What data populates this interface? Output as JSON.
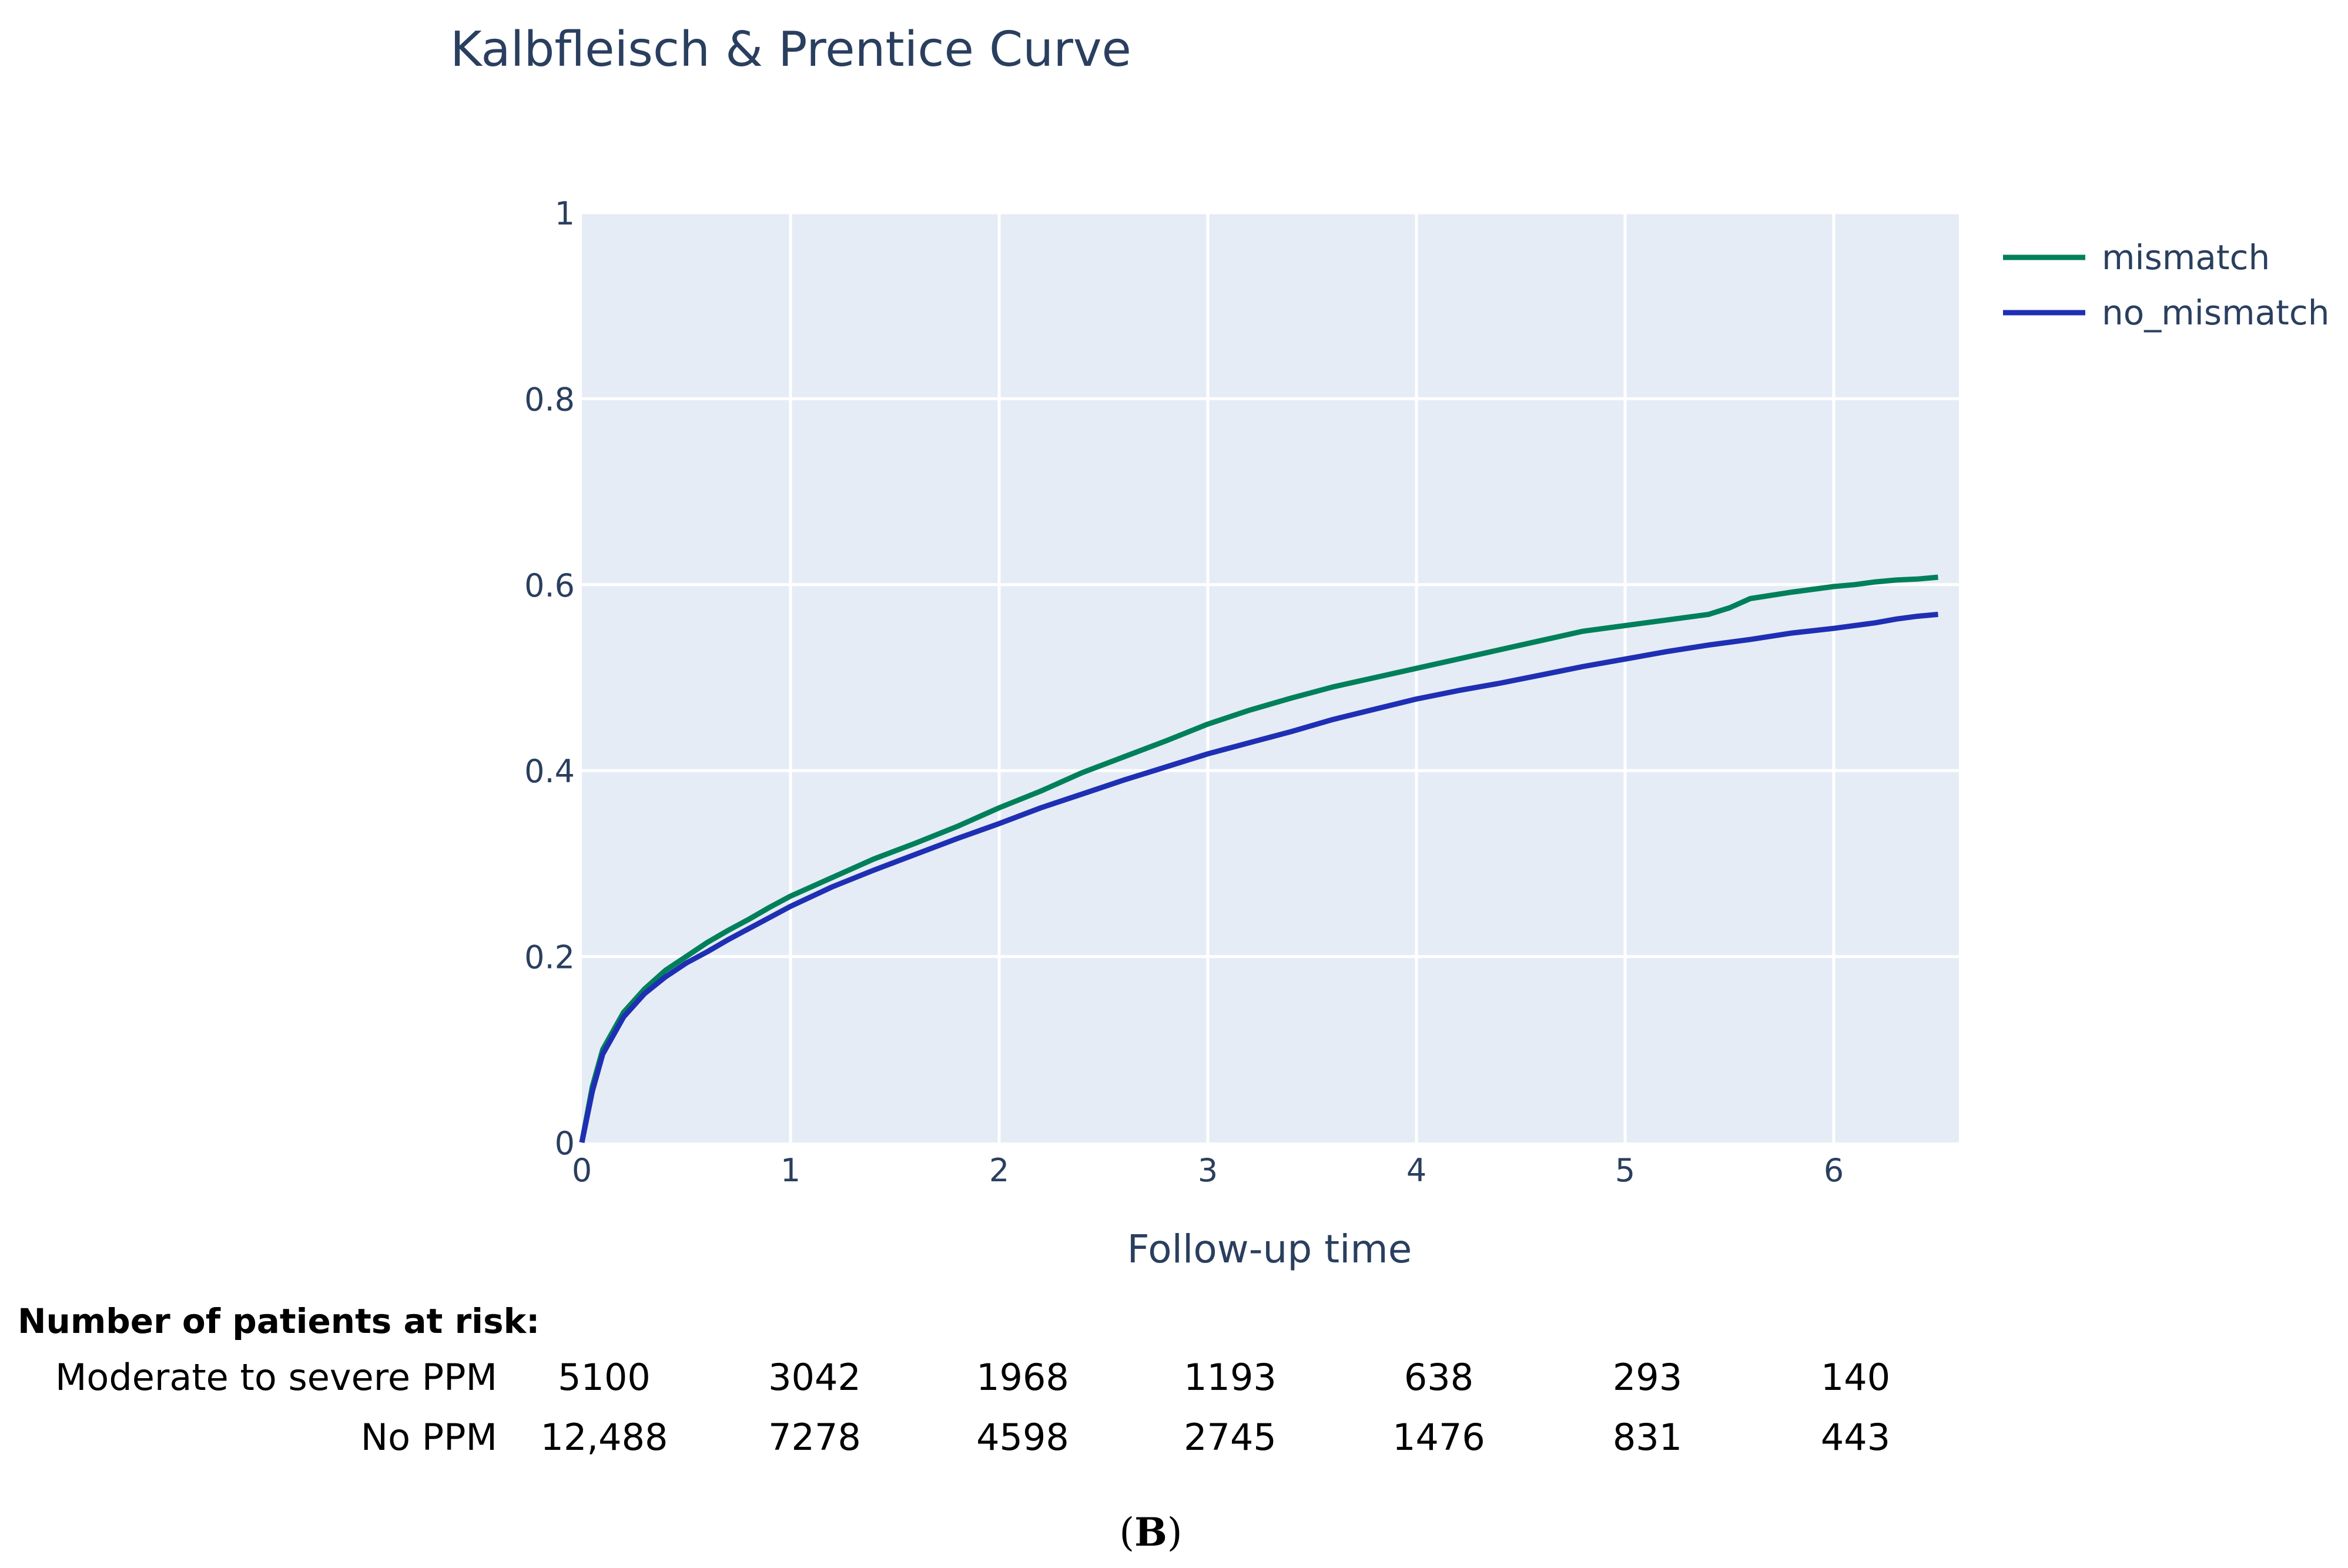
{
  "chart_data": {
    "type": "line",
    "title": "Kalbfleisch & Prentice Curve",
    "xlabel": "Follow-up time",
    "ylabel": "",
    "xlim": [
      0,
      6.6
    ],
    "ylim": [
      0,
      1
    ],
    "x_ticks": [
      "0",
      "1",
      "2",
      "3",
      "4",
      "5",
      "6"
    ],
    "y_ticks": [
      "0",
      "0.2",
      "0.4",
      "0.6",
      "0.8",
      "1"
    ],
    "grid": true,
    "legend_position": "top-right",
    "series": [
      {
        "name": "mismatch",
        "color": "#00805a",
        "x": [
          0,
          0.05,
          0.1,
          0.2,
          0.3,
          0.4,
          0.5,
          0.6,
          0.7,
          0.8,
          0.9,
          1.0,
          1.2,
          1.4,
          1.6,
          1.8,
          2.0,
          2.2,
          2.4,
          2.6,
          2.8,
          3.0,
          3.2,
          3.4,
          3.6,
          3.8,
          4.0,
          4.2,
          4.4,
          4.6,
          4.8,
          5.0,
          5.2,
          5.4,
          5.5,
          5.6,
          5.8,
          6.0,
          6.1,
          6.2,
          6.3,
          6.4,
          6.5
        ],
        "values": [
          0,
          0.06,
          0.1,
          0.14,
          0.165,
          0.185,
          0.2,
          0.215,
          0.228,
          0.24,
          0.253,
          0.265,
          0.285,
          0.305,
          0.322,
          0.34,
          0.36,
          0.378,
          0.398,
          0.415,
          0.432,
          0.45,
          0.465,
          0.478,
          0.49,
          0.5,
          0.51,
          0.52,
          0.53,
          0.54,
          0.55,
          0.556,
          0.562,
          0.568,
          0.575,
          0.585,
          0.592,
          0.598,
          0.6,
          0.603,
          0.605,
          0.606,
          0.608
        ]
      },
      {
        "name": "no_mismatch",
        "color": "#1f2fb4",
        "x": [
          0,
          0.05,
          0.1,
          0.2,
          0.3,
          0.4,
          0.5,
          0.6,
          0.7,
          0.8,
          0.9,
          1.0,
          1.2,
          1.4,
          1.6,
          1.8,
          2.0,
          2.2,
          2.4,
          2.6,
          2.8,
          3.0,
          3.2,
          3.4,
          3.6,
          3.8,
          4.0,
          4.2,
          4.4,
          4.6,
          4.8,
          5.0,
          5.2,
          5.4,
          5.6,
          5.8,
          6.0,
          6.2,
          6.3,
          6.4,
          6.5
        ],
        "values": [
          0,
          0.055,
          0.095,
          0.135,
          0.16,
          0.178,
          0.193,
          0.205,
          0.218,
          0.23,
          0.242,
          0.254,
          0.275,
          0.293,
          0.31,
          0.327,
          0.343,
          0.36,
          0.375,
          0.39,
          0.404,
          0.418,
          0.43,
          0.442,
          0.455,
          0.466,
          0.477,
          0.486,
          0.494,
          0.503,
          0.512,
          0.52,
          0.528,
          0.535,
          0.541,
          0.548,
          0.553,
          0.559,
          0.563,
          0.566,
          0.568
        ]
      }
    ]
  },
  "risk_table": {
    "header": "Number of patients at risk:",
    "rows": [
      {
        "label": "Moderate to severe PPM",
        "values": [
          "5100",
          "3042",
          "1968",
          "1193",
          "638",
          "293",
          "140"
        ]
      },
      {
        "label": "No PPM",
        "values": [
          "12,488",
          "7278",
          "4598",
          "2745",
          "1476",
          "831",
          "443"
        ]
      }
    ]
  },
  "panel_label": {
    "open": "(",
    "letter": "B",
    "close": ")"
  }
}
